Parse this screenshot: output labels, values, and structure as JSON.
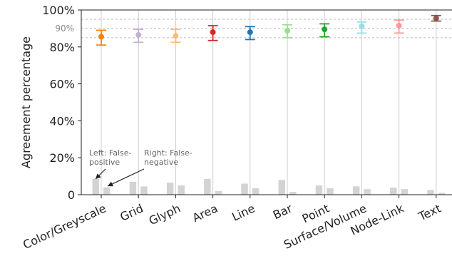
{
  "chart_data": {
    "type": "scatter",
    "title": "",
    "xlabel": "",
    "ylabel": "Agreement percentage",
    "ylim": [
      0,
      100
    ],
    "yticks": [
      "0",
      "20%",
      "40%",
      "60%",
      "80%",
      "100%"
    ],
    "ytick_values": [
      0,
      20,
      40,
      60,
      80,
      100
    ],
    "grid": "vertical",
    "reference_lines": [
      {
        "value": 90,
        "label": "90%"
      },
      {
        "value": 95,
        "label": ""
      },
      {
        "value": 85,
        "label": ""
      }
    ],
    "categories": [
      "Color/Greyscale",
      "Grid",
      "Glyph",
      "Area",
      "Line",
      "Bar",
      "Point",
      "Surface/Volume",
      "Node-Link",
      "Text"
    ],
    "series": [
      {
        "kind": "point-with-error",
        "values": [
          85.5,
          86.5,
          86,
          88,
          88,
          88.8,
          89.5,
          91.2,
          91.5,
          95.5
        ],
        "lower": [
          81,
          82.5,
          82.5,
          83.5,
          84,
          85,
          85.5,
          87.5,
          87.5,
          94
        ],
        "upper": [
          89,
          89.5,
          89.5,
          91.5,
          91,
          92,
          92.5,
          93.5,
          94.5,
          97
        ],
        "colors": [
          "#ff7f0e",
          "#c5b0d5",
          "#ffbb78",
          "#d62728",
          "#1f77b4",
          "#98df8a",
          "#2ca02c",
          "#9edae5",
          "#ff9896",
          "#8c564b"
        ]
      },
      {
        "kind": "bar-false-positive",
        "values": [
          8.5,
          7,
          6.5,
          8.5,
          6,
          8,
          5,
          4.5,
          3.8,
          2.5
        ],
        "color": "#d3d3d3"
      },
      {
        "kind": "bar-false-negative",
        "values": [
          4,
          4.5,
          5,
          2,
          3.5,
          1.5,
          3.5,
          3,
          3,
          1
        ],
        "color": "#d3d3d3"
      }
    ],
    "annotations": [
      {
        "lines": [
          "Left: False-",
          "positive"
        ]
      },
      {
        "lines": [
          "Right: False-",
          "negative"
        ]
      }
    ]
  }
}
